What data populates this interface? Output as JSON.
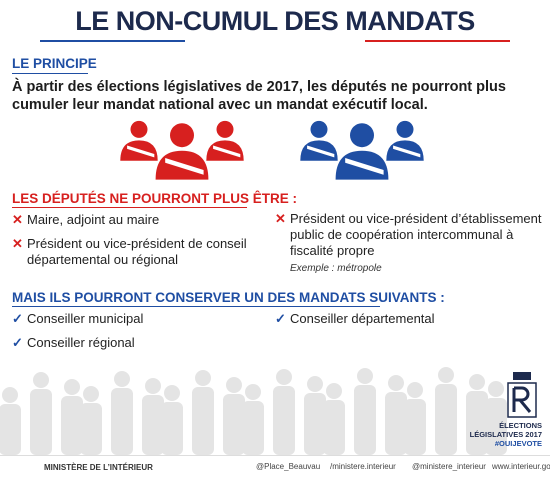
{
  "header": {
    "title": "LE NON-CUMUL DES MANDATS"
  },
  "principle": {
    "heading": "LE PRINCIPE",
    "text": "À partir des élections législatives de 2017, les députés ne pourront plus cumuler leur mandat national avec un mandat exécutif local."
  },
  "cannot": {
    "heading": "LES DÉPUTÉS NE POURRONT PLUS ÊTRE :",
    "items": [
      "Maire, adjoint au maire",
      "Président ou vice-président de conseil départemental ou régional",
      "Président ou vice-président d’établissement public de coopération intercommunal à fiscalité propre"
    ],
    "example": "Exemple : métropole"
  },
  "can": {
    "heading": "MAIS ILS POURRONT CONSERVER UN DES MANDATS SUIVANTS :",
    "items": [
      "Conseiller municipal",
      "Conseiller départemental",
      "Conseiller régional"
    ]
  },
  "badge": [
    "ÉLECTIONS",
    "LÉGISLATIVES 2017",
    "#OUIJEVOTE"
  ],
  "footer": {
    "ministry": "MINISTÈRE DE L’INTÉRIEUR",
    "social": [
      "@Place_Beauvau",
      "/ministere.interieur",
      "@ministere_interieur",
      "www.interieur.gouv.fr"
    ]
  }
}
